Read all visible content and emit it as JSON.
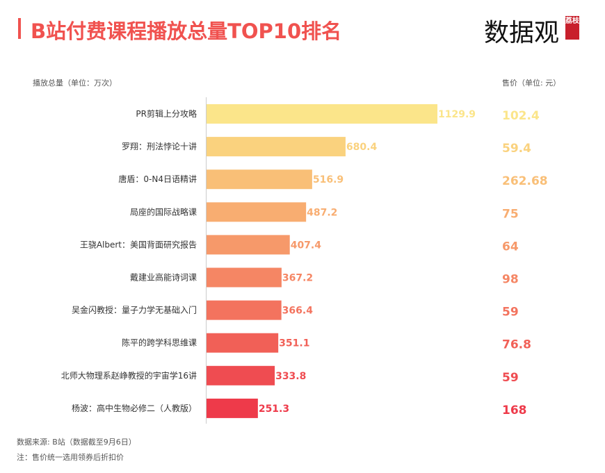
{
  "header": {
    "title": "B站付费课程播放总量TOP10排名",
    "logo": "数据观",
    "logo_badge": "荔枝"
  },
  "chart_data": {
    "type": "bar",
    "title": "B站付费课程播放总量TOP10排名",
    "xlabel": "播放总量（单位：万次）",
    "price_label": "售价（单位: 元）",
    "categories": [
      "PR剪辑上分攻略",
      "罗翔：刑法悖论十讲",
      "唐盾：0-N4日语精讲",
      "局座的国际战略课",
      "王骁Albert：美国背面研究报告",
      "戴建业高能诗词课",
      "吴金闪教授：量子力学无基础入门",
      "陈平的跨学科思维课",
      "北师大物理系赵峥教授的宇宙学16讲",
      "杨波：高中生物必修二（人教版）"
    ],
    "values": [
      1129.9,
      680.4,
      516.9,
      487.2,
      407.4,
      367.2,
      366.4,
      351.1,
      333.8,
      251.3
    ],
    "prices": [
      "102.4",
      "59.4",
      "262.68",
      "75",
      "64",
      "98",
      "59",
      "76.8",
      "59",
      "168"
    ],
    "colors": [
      "#fbe58a",
      "#fad27e",
      "#f9bf77",
      "#f8ad71",
      "#f6996a",
      "#f58664",
      "#f3735e",
      "#f16057",
      "#ef4c51",
      "#ee3a4a"
    ],
    "xlim": [
      0,
      1129.9
    ]
  },
  "footer": {
    "source": "数据来源: B站（数据截至9月6日）",
    "note": "注：售价统一选用领券后折扣价"
  }
}
